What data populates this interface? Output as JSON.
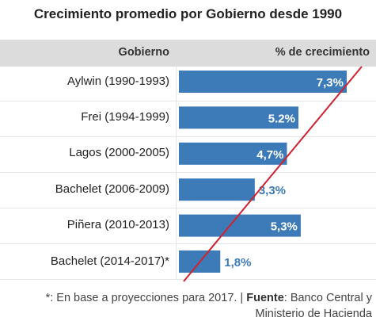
{
  "chart_data": {
    "type": "bar",
    "orientation": "horizontal",
    "title": "Crecimiento promedio por Gobierno desde 1990",
    "column_headers": [
      "Gobierno",
      "% de crecimiento"
    ],
    "categories": [
      "Aylwin (1990-1993)",
      "Frei (1994-1999)",
      "Lagos (2000-2005)",
      "Bachelet (2006-2009)",
      "Piñera (2010-2013)",
      "Bachelet (2014-2017)*"
    ],
    "values": [
      7.3,
      5.2,
      4.7,
      3.3,
      5.3,
      1.8
    ],
    "value_labels": [
      "7,3%",
      "5.2%",
      "4,7%",
      "3,3%",
      "5,3%",
      "1,8%"
    ],
    "xlim": [
      0,
      7.3
    ],
    "bar_color": "#3d7ab8",
    "label_color_inside": "#ffffff",
    "label_color_outside": "#3d7ab8",
    "annotation_line_color": "#d0212f",
    "grid": false
  },
  "footnote": {
    "prefix": "*: En base a proyecciones para 2017. | ",
    "source_label": "Fuente",
    "source_text": ": Banco Central y",
    "source_text_2": "Ministerio de Hacienda"
  }
}
